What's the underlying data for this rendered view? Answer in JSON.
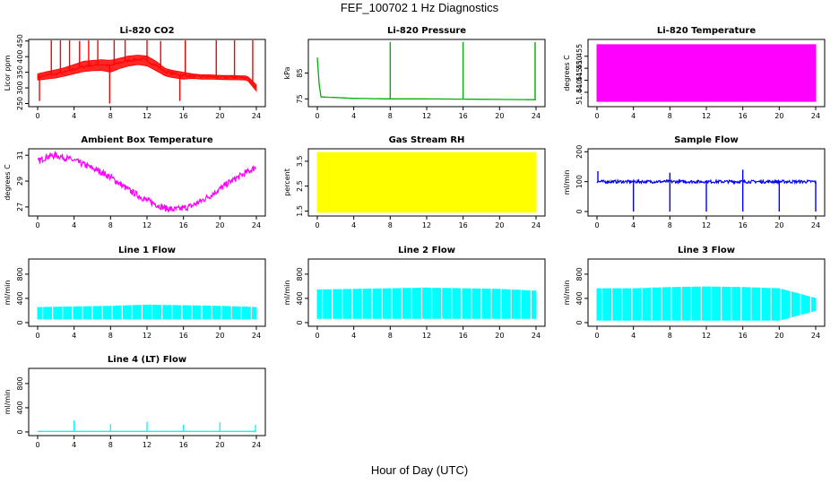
{
  "figure": {
    "title": "FEF_100702  1 Hz Diagnostics",
    "xlabel": "Hour of Day (UTC)"
  },
  "chart_data": [
    {
      "type": "line",
      "title": "Li-820 CO2",
      "xlabel": "",
      "ylabel": "Licor ppm",
      "xlim": [
        0,
        24
      ],
      "ylim": [
        240,
        455
      ],
      "xticks": [
        "0",
        "4",
        "8",
        "12",
        "16",
        "20",
        "24"
      ],
      "yticks": [
        "250",
        "300",
        "350",
        "400",
        "450"
      ],
      "color": "#ff0000",
      "series": [
        {
          "x": [
            0,
            1,
            2,
            3,
            4,
            5,
            6,
            7,
            8,
            9,
            10,
            11,
            12,
            13,
            14,
            15,
            16,
            17,
            18,
            19,
            20,
            21,
            22,
            23,
            24
          ],
          "values": [
            335,
            340,
            345,
            350,
            360,
            368,
            372,
            375,
            370,
            380,
            388,
            392,
            388,
            372,
            352,
            345,
            340,
            338,
            336,
            336,
            335,
            334,
            334,
            333,
            298
          ],
          "envelope_low": [
            325,
            328,
            332,
            338,
            345,
            352,
            355,
            356,
            350,
            362,
            370,
            375,
            370,
            355,
            338,
            332,
            328,
            330,
            328,
            328,
            327,
            326,
            326,
            325,
            290
          ],
          "envelope_high": [
            345,
            352,
            358,
            365,
            375,
            385,
            388,
            390,
            388,
            395,
            402,
            405,
            402,
            385,
            362,
            355,
            350,
            345,
            342,
            342,
            340,
            340,
            339,
            338,
            310
          ]
        }
      ],
      "spikes": [
        {
          "x": 0.2,
          "y": 258
        },
        {
          "x": 1.5,
          "y": 455
        },
        {
          "x": 2.5,
          "y": 455
        },
        {
          "x": 3.5,
          "y": 455
        },
        {
          "x": 4.6,
          "y": 450
        },
        {
          "x": 5.6,
          "y": 455
        },
        {
          "x": 6.6,
          "y": 455
        },
        {
          "x": 7.9,
          "y": 250
        },
        {
          "x": 8.4,
          "y": 455
        },
        {
          "x": 9.6,
          "y": 455
        },
        {
          "x": 12.0,
          "y": 455
        },
        {
          "x": 13.5,
          "y": 450
        },
        {
          "x": 15.6,
          "y": 258
        },
        {
          "x": 16.2,
          "y": 455
        },
        {
          "x": 19.6,
          "y": 455
        },
        {
          "x": 21.6,
          "y": 455
        },
        {
          "x": 23.6,
          "y": 455
        }
      ]
    },
    {
      "type": "line",
      "title": "Li-820 Pressure",
      "xlabel": "",
      "ylabel": "kPa",
      "xlim": [
        0,
        24
      ],
      "ylim": [
        72,
        98
      ],
      "xticks": [
        "0",
        "4",
        "8",
        "12",
        "16",
        "20",
        "24"
      ],
      "yticks": [
        "75",
        "85"
      ],
      "color": "#00b000",
      "series": [
        {
          "x": [
            0,
            0.3,
            4,
            8,
            12,
            16,
            20,
            23.8,
            24
          ],
          "values": [
            91,
            75.8,
            75.2,
            75.0,
            75.0,
            74.9,
            74.8,
            74.7,
            74.7
          ]
        }
      ],
      "spikes": [
        {
          "x": 8.0,
          "y": 97
        },
        {
          "x": 16.0,
          "y": 97
        },
        {
          "x": 23.9,
          "y": 97
        }
      ]
    },
    {
      "type": "area",
      "title": "Li-820 Temperature",
      "xlabel": "",
      "ylabel": "degrees C",
      "xlim": [
        0,
        24
      ],
      "ylim": [
        51.434,
        51.462
      ],
      "xticks": [
        "0",
        "4",
        "8",
        "12",
        "16",
        "20",
        "24"
      ],
      "yticks": [
        "51.440",
        "51.445",
        "51.450",
        "51.455"
      ],
      "color": "#ff00ff",
      "series": [
        {
          "x": [
            0,
            24
          ],
          "values": [
            51.4598,
            51.4598
          ],
          "lower": [
            51.4362,
            51.4362
          ]
        }
      ]
    },
    {
      "type": "line",
      "title": "Ambient Box Temperature",
      "xlabel": "",
      "ylabel": "degrees C",
      "xlim": [
        0,
        24
      ],
      "ylim": [
        26.3,
        31.5
      ],
      "xticks": [
        "0",
        "4",
        "8",
        "12",
        "16",
        "20",
        "24"
      ],
      "yticks": [
        "27",
        "29",
        "31"
      ],
      "color": "#ff00ff",
      "series": [
        {
          "x": [
            0,
            1,
            2,
            3,
            4,
            5,
            6,
            7,
            8,
            9,
            10,
            11,
            12,
            13,
            14,
            15,
            16,
            17,
            18,
            19,
            20,
            21,
            22,
            23,
            24
          ],
          "values": [
            30.5,
            30.9,
            31.0,
            30.8,
            30.6,
            30.3,
            30.0,
            29.7,
            29.3,
            28.8,
            28.3,
            27.9,
            27.5,
            27.2,
            26.9,
            26.8,
            26.9,
            27.1,
            27.5,
            27.9,
            28.4,
            28.9,
            29.3,
            29.7,
            30.1
          ],
          "band": 0.25
        }
      ]
    },
    {
      "type": "area",
      "title": "Gas Stream RH",
      "xlabel": "",
      "ylabel": "percent",
      "xlim": [
        0,
        24
      ],
      "ylim": [
        1.3,
        4.0
      ],
      "xticks": [
        "0",
        "4",
        "8",
        "12",
        "16",
        "20",
        "24"
      ],
      "yticks": [
        "1.5",
        "2.5",
        "3.5"
      ],
      "color": "#ffff00",
      "series": [
        {
          "x": [
            0,
            24
          ],
          "values": [
            3.85,
            3.85
          ],
          "lower": [
            1.45,
            1.45
          ]
        }
      ]
    },
    {
      "type": "line",
      "title": "Sample Flow",
      "xlabel": "",
      "ylabel": "ml/min",
      "xlim": [
        0,
        24
      ],
      "ylim": [
        -15,
        210
      ],
      "xticks": [
        "0",
        "4",
        "8",
        "12",
        "16",
        "20",
        "24"
      ],
      "yticks": [
        "0",
        "100",
        "200"
      ],
      "color": "#0000ff",
      "series": [
        {
          "x": [
            0,
            4,
            8,
            12,
            16,
            20,
            24
          ],
          "values": [
            100,
            100,
            100,
            100,
            100,
            100,
            100
          ],
          "band": 5
        }
      ],
      "spikes": [
        {
          "x": 0.1,
          "y": 135
        },
        {
          "x": 4.0,
          "y": 0
        },
        {
          "x": 8.0,
          "y": 130
        },
        {
          "x": 8.0,
          "y": 0
        },
        {
          "x": 12.0,
          "y": 0
        },
        {
          "x": 16.0,
          "y": 140
        },
        {
          "x": 16.0,
          "y": 0
        },
        {
          "x": 20.0,
          "y": 0
        },
        {
          "x": 24.0,
          "y": 0
        }
      ]
    },
    {
      "type": "area",
      "title": "Line 1 Flow",
      "xlabel": "",
      "ylabel": "ml/min",
      "xlim": [
        0,
        24
      ],
      "ylim": [
        -60,
        1050
      ],
      "xticks": [
        "0",
        "4",
        "8",
        "12",
        "16",
        "20",
        "24"
      ],
      "yticks": [
        "0",
        "400",
        "800"
      ],
      "color": "#00ffff",
      "series": [
        {
          "x": [
            0,
            4,
            8,
            12,
            16,
            20,
            24
          ],
          "values": [
            250,
            260,
            270,
            290,
            280,
            270,
            250
          ],
          "lower": [
            60,
            60,
            60,
            60,
            60,
            60,
            60
          ]
        }
      ]
    },
    {
      "type": "area",
      "title": "Line 2 Flow",
      "xlabel": "",
      "ylabel": "ml/min",
      "xlim": [
        0,
        24
      ],
      "ylim": [
        -60,
        1050
      ],
      "xticks": [
        "0",
        "4",
        "8",
        "12",
        "16",
        "20",
        "24"
      ],
      "yticks": [
        "0",
        "400",
        "800"
      ],
      "color": "#00ffff",
      "series": [
        {
          "x": [
            0,
            4,
            8,
            12,
            16,
            20,
            24
          ],
          "values": [
            540,
            550,
            560,
            570,
            560,
            550,
            520
          ],
          "lower": [
            70,
            70,
            70,
            70,
            70,
            70,
            70
          ]
        }
      ]
    },
    {
      "type": "area",
      "title": "Line 3 Flow",
      "xlabel": "",
      "ylabel": "ml/min",
      "xlim": [
        0,
        24
      ],
      "ylim": [
        -60,
        1050
      ],
      "xticks": [
        "0",
        "4",
        "8",
        "12",
        "16",
        "20",
        "24"
      ],
      "yticks": [
        "0",
        "400",
        "800"
      ],
      "color": "#00ffff",
      "series": [
        {
          "x": [
            0,
            4,
            8,
            12,
            16,
            20,
            24
          ],
          "values": [
            560,
            560,
            580,
            590,
            580,
            560,
            400
          ],
          "lower": [
            40,
            40,
            40,
            40,
            40,
            40,
            200
          ]
        }
      ]
    },
    {
      "type": "line",
      "title": "Line 4 (LT) Flow",
      "xlabel": "",
      "ylabel": "ml/min",
      "xlim": [
        0,
        24
      ],
      "ylim": [
        -60,
        1050
      ],
      "xticks": [
        "0",
        "4",
        "8",
        "12",
        "16",
        "20",
        "24"
      ],
      "yticks": [
        "0",
        "400",
        "800"
      ],
      "color": "#00ffff",
      "series": [
        {
          "x": [
            0,
            24
          ],
          "values": [
            10,
            10
          ]
        }
      ],
      "spikes": [
        {
          "x": 4.0,
          "y": 190
        },
        {
          "x": 8.0,
          "y": 130
        },
        {
          "x": 12.0,
          "y": 170
        },
        {
          "x": 16.0,
          "y": 120
        },
        {
          "x": 20.0,
          "y": 160
        },
        {
          "x": 23.9,
          "y": 120
        }
      ]
    }
  ]
}
